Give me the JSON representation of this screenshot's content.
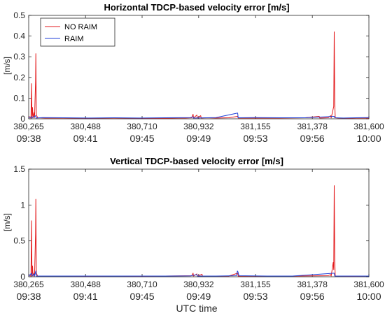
{
  "chart_data": [
    {
      "type": "line",
      "title": "Horizontal TDCP-based velocity error [m/s]",
      "ylabel": "[m/s]",
      "xlabel": "",
      "xlim": [
        380265,
        381600
      ],
      "ylim": [
        0,
        0.5
      ],
      "yticks": [
        "0",
        "0.1",
        "0.2",
        "0.3",
        "0.4",
        "0.5"
      ],
      "xticks": [
        "380,265",
        "380,488",
        "380,710",
        "380,932",
        "381,155",
        "381,378",
        "381,600"
      ],
      "xticks_time": [
        "09:38",
        "09:41",
        "09:45",
        "09:49",
        "09:53",
        "09:56",
        "10:00"
      ],
      "legend": {
        "position": "top-left",
        "entries": [
          "NO RAIM",
          "RAIM"
        ]
      },
      "series": [
        {
          "name": "NO RAIM",
          "color": "#e31a1c",
          "points": [
            [
              380265,
              0.008
            ],
            [
              380270,
              0.01
            ],
            [
              380274,
              0.003
            ],
            [
              380276,
              0.17
            ],
            [
              380278,
              0.01
            ],
            [
              380280,
              0.055
            ],
            [
              380282,
              0.005
            ],
            [
              380286,
              0.03
            ],
            [
              380288,
              0.006
            ],
            [
              380292,
              0.18
            ],
            [
              380293,
              0.315
            ],
            [
              380295,
              0.02
            ],
            [
              380300,
              0.005
            ],
            [
              380330,
              0.004
            ],
            [
              380400,
              0.004
            ],
            [
              380500,
              0.003
            ],
            [
              380600,
              0.004
            ],
            [
              380700,
              0.003
            ],
            [
              380800,
              0.003
            ],
            [
              380880,
              0.004
            ],
            [
              380905,
              0.005
            ],
            [
              380910,
              0.022
            ],
            [
              380912,
              0.004
            ],
            [
              380925,
              0.018
            ],
            [
              380927,
              0.004
            ],
            [
              380940,
              0.015
            ],
            [
              380942,
              0.004
            ],
            [
              380960,
              0.005
            ],
            [
              381000,
              0.004
            ],
            [
              381050,
              0.005
            ],
            [
              381085,
              0.012
            ],
            [
              381087,
              0.004
            ],
            [
              381150,
              0.004
            ],
            [
              381250,
              0.004
            ],
            [
              381350,
              0.005
            ],
            [
              381405,
              0.012
            ],
            [
              381407,
              0.004
            ],
            [
              381440,
              0.005
            ],
            [
              381450,
              0.015
            ],
            [
              381452,
              0.004
            ],
            [
              381462,
              0.06
            ],
            [
              381464,
              0.42
            ],
            [
              381466,
              0.07
            ],
            [
              381468,
              0.005
            ],
            [
              381480,
              0.004
            ],
            [
              381520,
              0.003
            ],
            [
              381560,
              0.004
            ],
            [
              381600,
              0.004
            ]
          ]
        },
        {
          "name": "RAIM",
          "color": "#1f3fd8",
          "points": [
            [
              380265,
              0.005
            ],
            [
              380276,
              0.01
            ],
            [
              380278,
              0.004
            ],
            [
              380292,
              0.015
            ],
            [
              380294,
              0.004
            ],
            [
              380320,
              0.006
            ],
            [
              380400,
              0.005
            ],
            [
              380500,
              0.004
            ],
            [
              380600,
              0.005
            ],
            [
              380700,
              0.004
            ],
            [
              380800,
              0.005
            ],
            [
              380900,
              0.006
            ],
            [
              380910,
              0.01
            ],
            [
              380912,
              0.004
            ],
            [
              381000,
              0.006
            ],
            [
              381085,
              0.028
            ],
            [
              381087,
              0.005
            ],
            [
              381150,
              0.006
            ],
            [
              381250,
              0.005
            ],
            [
              381350,
              0.005
            ],
            [
              381464,
              0.012
            ],
            [
              381466,
              0.005
            ],
            [
              381500,
              0.004
            ],
            [
              381600,
              0.006
            ]
          ]
        }
      ]
    },
    {
      "type": "line",
      "title": "Vertical TDCP-based velocity error [m/s]",
      "ylabel": "[m/s]",
      "xlabel": "UTC time",
      "xlim": [
        380265,
        381600
      ],
      "ylim": [
        0,
        1.5
      ],
      "yticks": [
        "0",
        "0.5",
        "1",
        "1.5"
      ],
      "xticks": [
        "380,265",
        "380,488",
        "380,710",
        "380,932",
        "381,155",
        "381,378",
        "381,600"
      ],
      "xticks_time": [
        "09:38",
        "09:41",
        "09:45",
        "09:49",
        "09:53",
        "09:56",
        "10:00"
      ],
      "series": [
        {
          "name": "NO RAIM",
          "color": "#e31a1c",
          "points": [
            [
              380265,
              0.015
            ],
            [
              380270,
              0.02
            ],
            [
              380274,
              0.008
            ],
            [
              380276,
              0.78
            ],
            [
              380278,
              0.02
            ],
            [
              380280,
              0.15
            ],
            [
              380282,
              0.01
            ],
            [
              380286,
              0.05
            ],
            [
              380288,
              0.01
            ],
            [
              380292,
              0.6
            ],
            [
              380293,
              1.08
            ],
            [
              380295,
              0.05
            ],
            [
              380300,
              0.01
            ],
            [
              380400,
              0.01
            ],
            [
              380500,
              0.008
            ],
            [
              380600,
              0.01
            ],
            [
              380700,
              0.008
            ],
            [
              380800,
              0.01
            ],
            [
              380905,
              0.015
            ],
            [
              380910,
              0.05
            ],
            [
              380912,
              0.01
            ],
            [
              380925,
              0.04
            ],
            [
              380927,
              0.01
            ],
            [
              380945,
              0.035
            ],
            [
              380947,
              0.01
            ],
            [
              381050,
              0.01
            ],
            [
              381085,
              0.05
            ],
            [
              381087,
              0.01
            ],
            [
              381200,
              0.01
            ],
            [
              381300,
              0.01
            ],
            [
              381440,
              0.015
            ],
            [
              381450,
              0.03
            ],
            [
              381452,
              0.01
            ],
            [
              381460,
              0.2
            ],
            [
              381462,
              0.1
            ],
            [
              381464,
              1.27
            ],
            [
              381466,
              0.22
            ],
            [
              381468,
              0.01
            ],
            [
              381520,
              0.008
            ],
            [
              381600,
              0.01
            ]
          ]
        },
        {
          "name": "RAIM",
          "color": "#1f3fd8",
          "points": [
            [
              380265,
              0.01
            ],
            [
              380276,
              0.05
            ],
            [
              380278,
              0.01
            ],
            [
              380286,
              0.04
            ],
            [
              380288,
              0.01
            ],
            [
              380293,
              0.08
            ],
            [
              380295,
              0.01
            ],
            [
              380400,
              0.01
            ],
            [
              380500,
              0.01
            ],
            [
              380600,
              0.01
            ],
            [
              380700,
              0.01
            ],
            [
              380800,
              0.01
            ],
            [
              380900,
              0.012
            ],
            [
              380925,
              0.03
            ],
            [
              380927,
              0.01
            ],
            [
              381000,
              0.01
            ],
            [
              381080,
              0.015
            ],
            [
              381084,
              0.08
            ],
            [
              381086,
              0.07
            ],
            [
              381090,
              0.015
            ],
            [
              381200,
              0.01
            ],
            [
              381300,
              0.01
            ],
            [
              381464,
              0.05
            ],
            [
              381466,
              0.01
            ],
            [
              381600,
              0.01
            ]
          ]
        }
      ]
    }
  ]
}
